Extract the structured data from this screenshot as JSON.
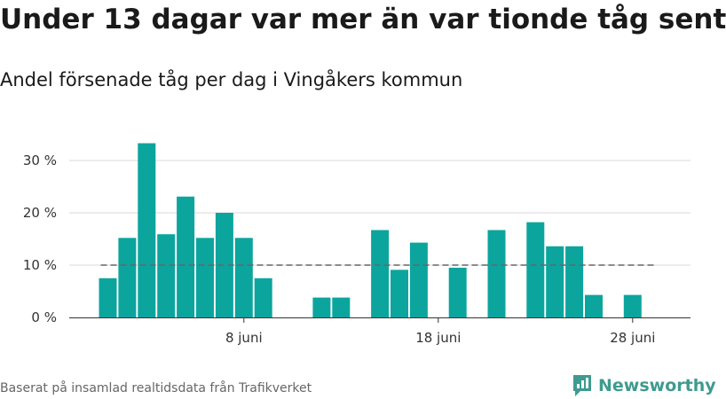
{
  "title": "Under 13 dagar var mer än var tionde tåg sent",
  "subtitle": "Andel försenade tåg per dag i Vingåkers kommun",
  "footer": "Baserat på insamlad realtidsdata från Trafikverket",
  "brand": {
    "name": "Newsworthy",
    "icon": "newsworthy-logo-icon"
  },
  "colors": {
    "bar": "#0ca59e",
    "grid": "#d9d9d9",
    "reference": "#666666"
  },
  "chart_data": {
    "type": "bar",
    "x": [
      "1 juni",
      "2 juni",
      "3 juni",
      "4 juni",
      "5 juni",
      "6 juni",
      "7 juni",
      "8 juni",
      "9 juni",
      "10 juni",
      "11 juni",
      "12 juni",
      "13 juni",
      "14 juni",
      "15 juni",
      "16 juni",
      "17 juni",
      "18 juni",
      "19 juni",
      "20 juni",
      "21 juni",
      "22 juni",
      "23 juni",
      "24 juni",
      "25 juni",
      "26 juni",
      "27 juni",
      "28 juni",
      "29 juni"
    ],
    "values": [
      7.5,
      15.2,
      33.3,
      15.9,
      23.1,
      15.2,
      20.0,
      15.2,
      7.5,
      0,
      0,
      3.8,
      3.8,
      0,
      16.7,
      9.1,
      14.3,
      0,
      9.5,
      0,
      16.7,
      0,
      18.2,
      13.6,
      13.6,
      4.3,
      0,
      4.3,
      0
    ],
    "reference_line": 10,
    "reference_range": [
      "1 juni",
      "29 juni"
    ],
    "ylim": [
      0,
      36
    ],
    "yticks": [
      0,
      10,
      20,
      30
    ],
    "ytick_labels": [
      "0 %",
      "10 %",
      "20 %",
      "30 %"
    ],
    "xticks": [
      "8 juni",
      "18 juni",
      "28 juni"
    ],
    "xlabel": "",
    "ylabel": "",
    "grid": true
  }
}
